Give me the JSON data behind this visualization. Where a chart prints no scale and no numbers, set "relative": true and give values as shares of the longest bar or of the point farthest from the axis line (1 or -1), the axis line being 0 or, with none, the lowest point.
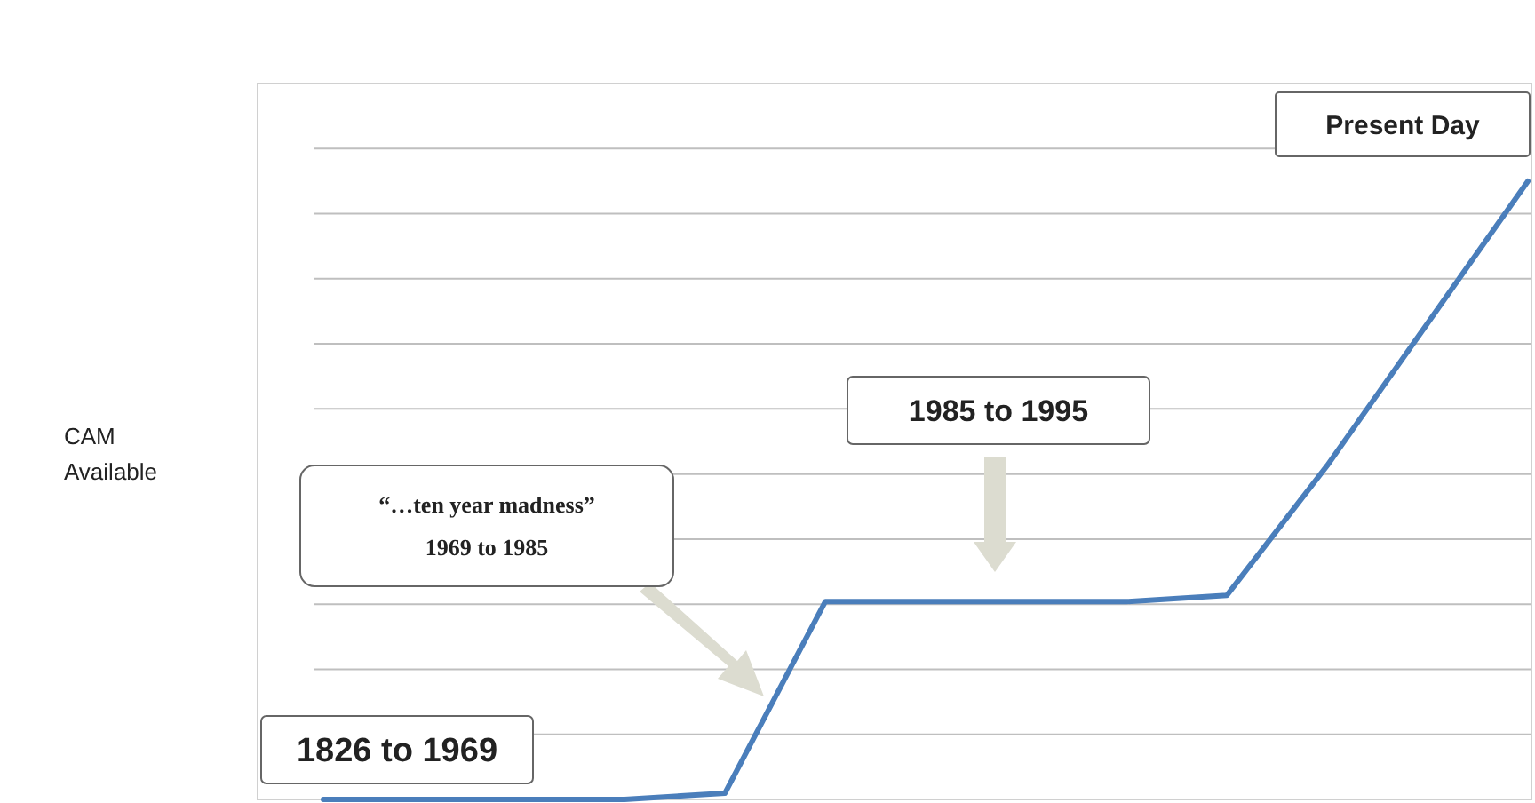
{
  "chart_data": {
    "type": "line",
    "relative": true,
    "grid": "y",
    "marker": "none",
    "line_style": "solid",
    "categories": [
      null,
      null,
      null,
      null,
      null,
      null,
      null,
      null,
      null,
      null,
      null,
      null,
      null
    ],
    "series": [
      {
        "color": "#4a7ebb",
        "values": [
          0,
          0,
          0,
          0,
          0.01,
          0.32,
          0.32,
          0.32,
          0.32,
          0.33,
          0.54,
          0.77,
          1
        ]
      }
    ],
    "annotations": [
      "1826 to 1969",
      "“…ten year madness”\n1969 to 1985",
      "1985 to 1995",
      "Present Day",
      "CAM\nAvailable"
    ]
  }
}
